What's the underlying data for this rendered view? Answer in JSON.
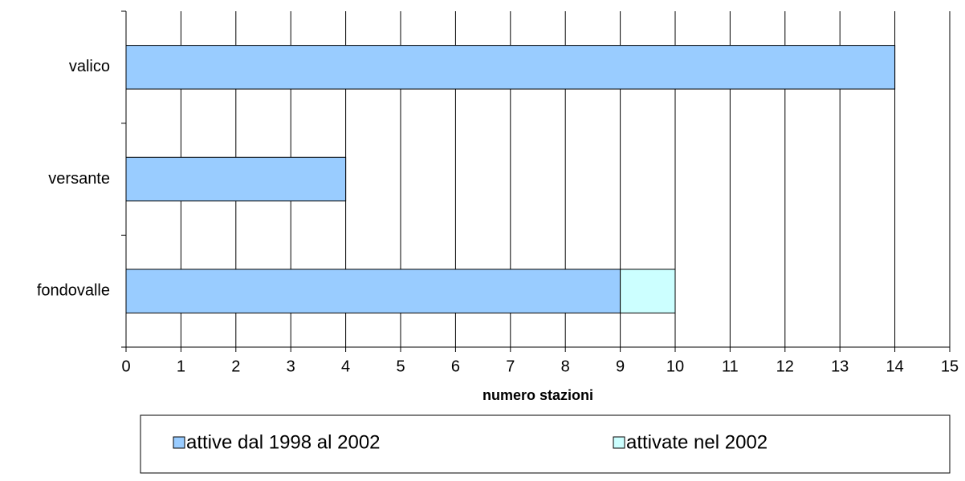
{
  "chart_data": {
    "type": "hbar_stacked",
    "categories": [
      "valico",
      "versante",
      "fondovalle"
    ],
    "series": [
      {
        "name": "attive dal 1998 al 2002",
        "color": "#99ccff",
        "values": [
          14,
          4,
          9
        ]
      },
      {
        "name": "attivate nel 2002",
        "color": "#ccffff",
        "values": [
          0,
          0,
          1
        ]
      }
    ],
    "xlabel": "numero stazioni",
    "xlim": [
      0,
      15
    ],
    "xticks": [
      0,
      1,
      2,
      3,
      4,
      5,
      6,
      7,
      8,
      9,
      10,
      11,
      12,
      13,
      14,
      15
    ],
    "grid": true,
    "legend": "bottom"
  }
}
